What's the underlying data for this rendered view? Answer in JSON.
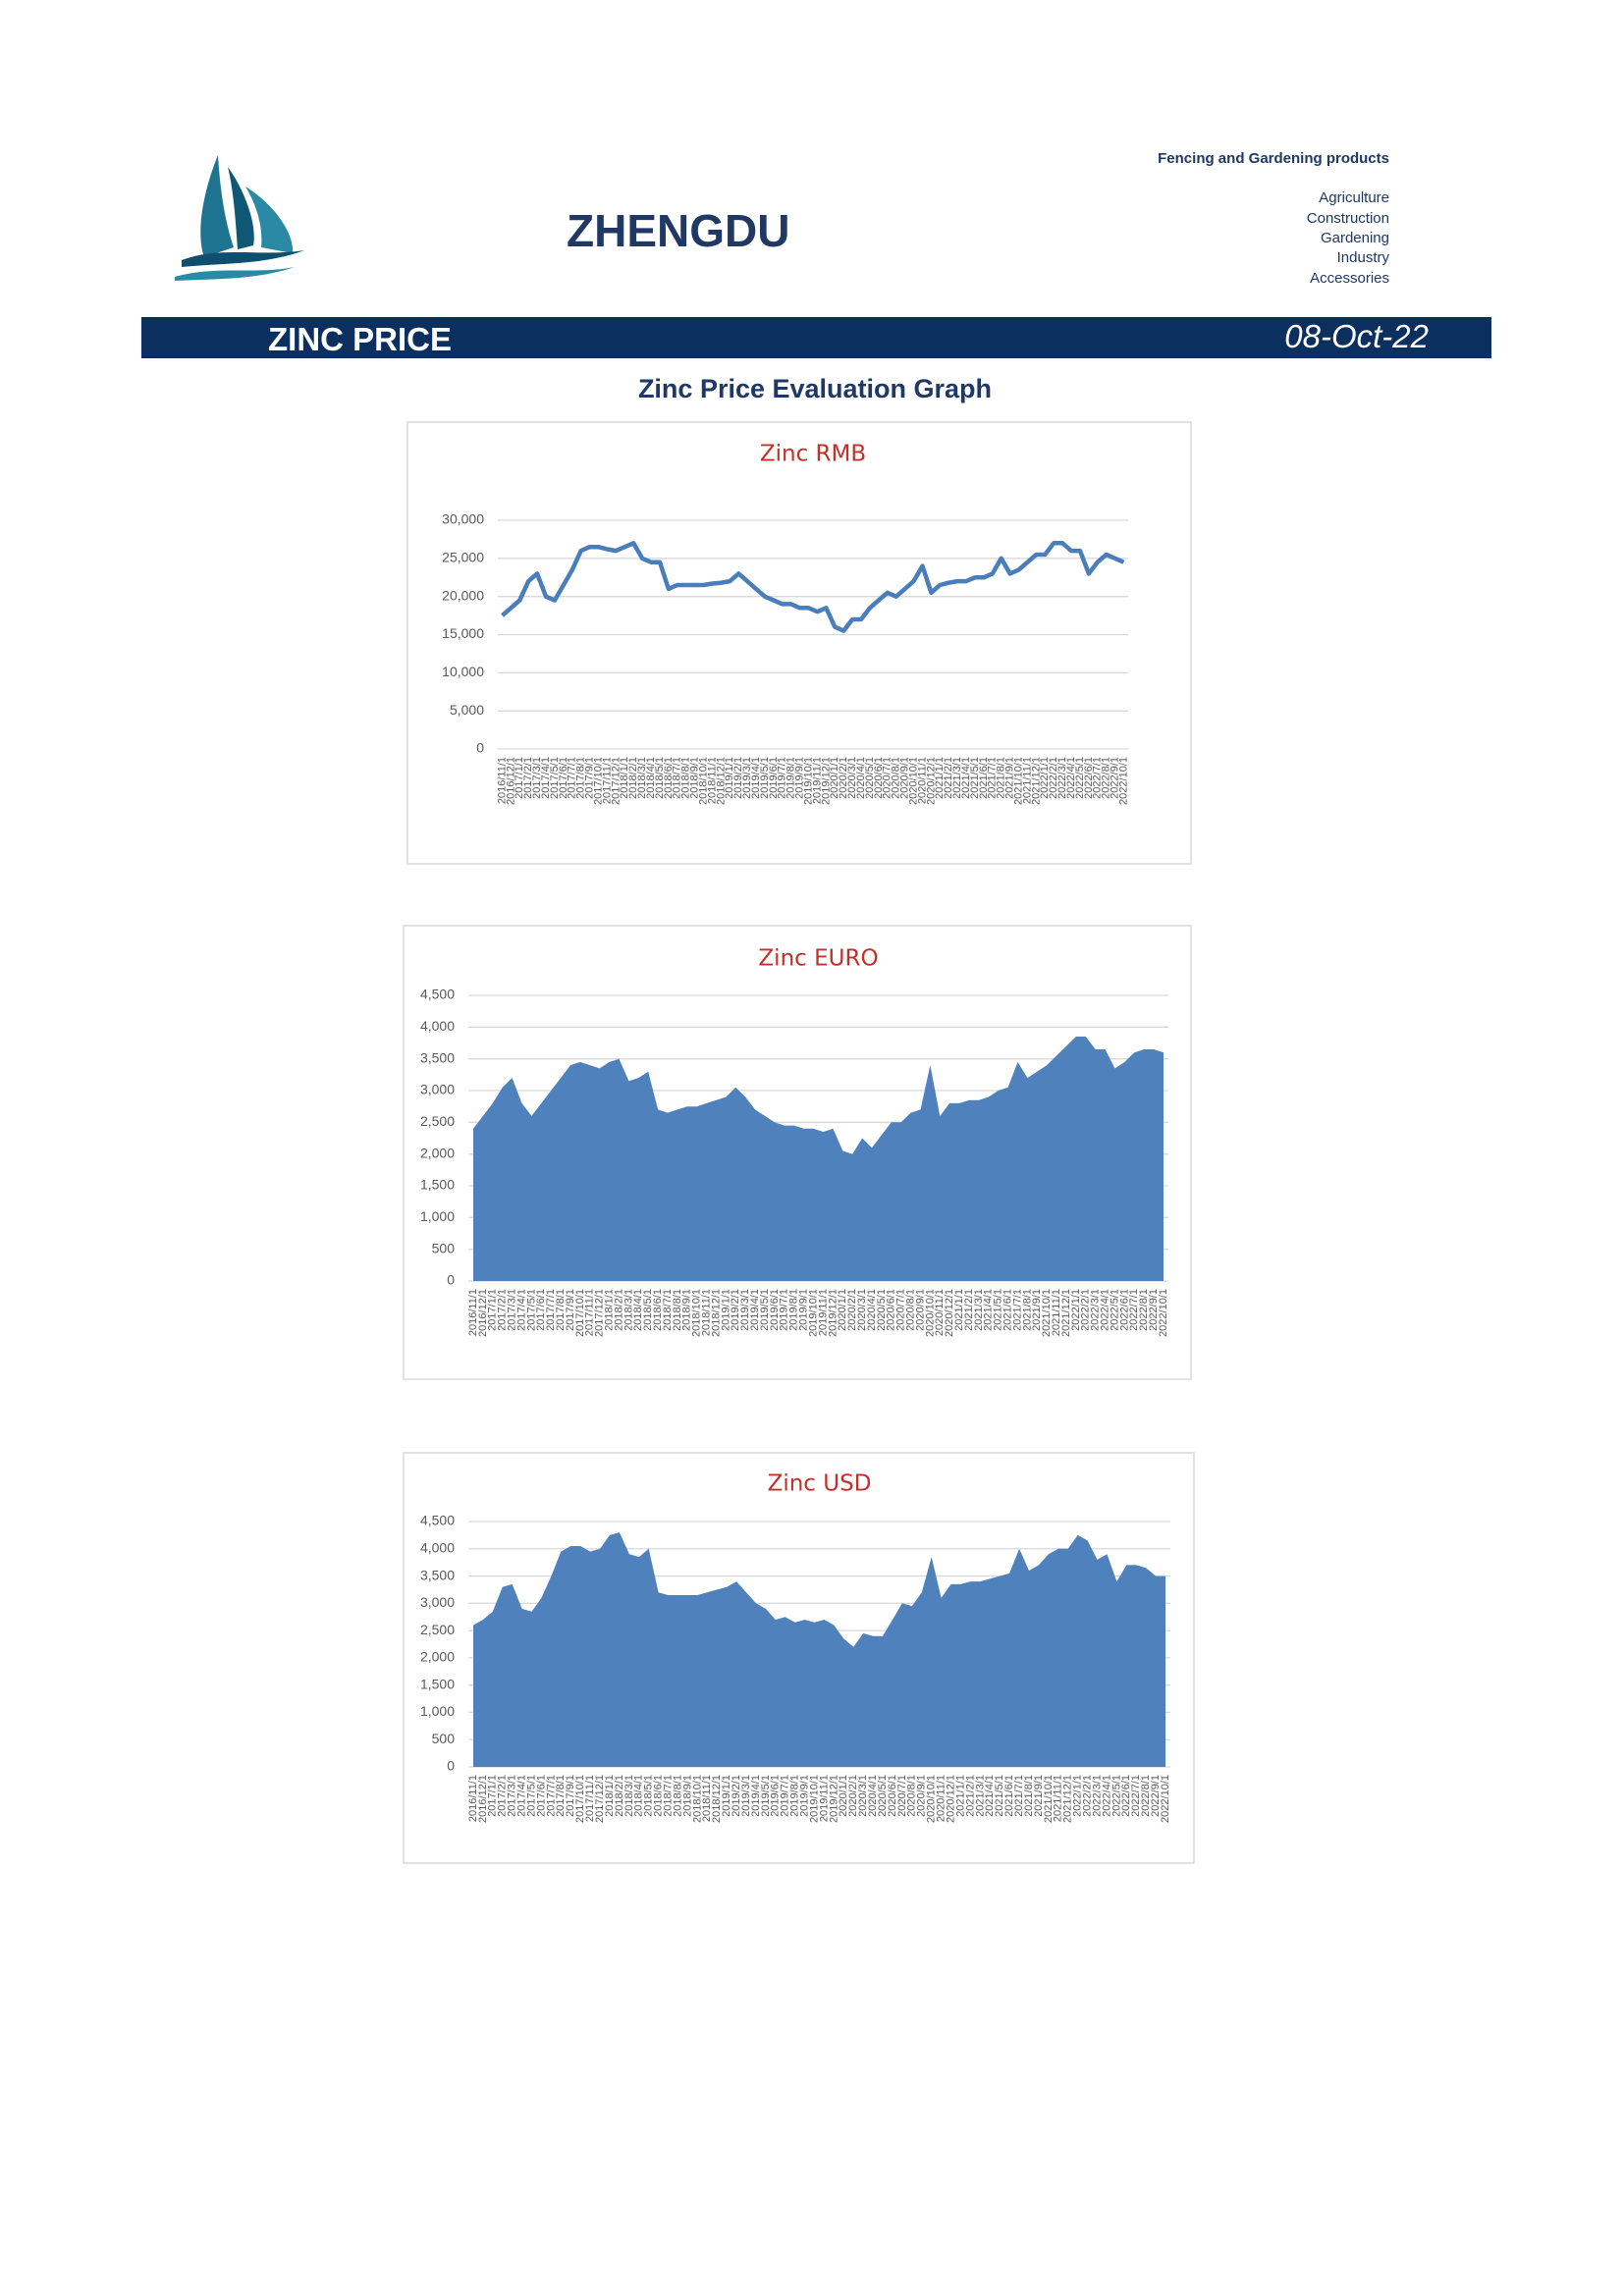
{
  "header": {
    "brand": "ZHENGDU",
    "tagline": "Fencing and Gardening products",
    "sectors": [
      "Agriculture",
      "Construction",
      "Gardening",
      "Industry",
      "Accessories"
    ]
  },
  "banner": {
    "title": "ZINC PRICE",
    "date": "08-Oct-22"
  },
  "heading": "Zinc Price Evaluation Graph",
  "chart_data": [
    {
      "type": "line",
      "title": "Zinc RMB",
      "color": "#4a7ebb",
      "categories": [
        "2016/11/1",
        "2016/12/1",
        "2017/1/1",
        "2017/2/1",
        "2017/3/1",
        "2017/4/1",
        "2017/5/1",
        "2017/6/1",
        "2017/7/1",
        "2017/8/1",
        "2017/9/1",
        "2017/10/1",
        "2017/11/1",
        "2017/12/1",
        "2018/1/1",
        "2018/2/1",
        "2018/3/1",
        "2018/4/1",
        "2018/5/1",
        "2018/6/1",
        "2018/7/1",
        "2018/8/1",
        "2018/9/1",
        "2018/10/1",
        "2018/11/1",
        "2018/12/1",
        "2019/1/1",
        "2019/2/1",
        "2019/3/1",
        "2019/4/1",
        "2019/5/1",
        "2019/6/1",
        "2019/7/1",
        "2019/8/1",
        "2019/9/1",
        "2019/10/1",
        "2019/11/1",
        "2019/12/1",
        "2020/1/1",
        "2020/2/1",
        "2020/3/1",
        "2020/4/1",
        "2020/5/1",
        "2020/6/1",
        "2020/7/1",
        "2020/8/1",
        "2020/9/1",
        "2020/10/1",
        "2020/11/1",
        "2020/12/1",
        "2021/1/1",
        "2021/2/1",
        "2021/3/1",
        "2021/4/1",
        "2021/5/1",
        "2021/6/1",
        "2021/7/1",
        "2021/8/1",
        "2021/9/1",
        "2021/10/1",
        "2021/11/1",
        "2021/12/1",
        "2022/1/1",
        "2022/2/1",
        "2022/3/1",
        "2022/4/1",
        "2022/5/1",
        "2022/6/1",
        "2022/7/1",
        "2022/8/1",
        "2022/9/1",
        "2022/10/1"
      ],
      "values": [
        17500,
        18500,
        19500,
        22000,
        23000,
        20000,
        19500,
        21500,
        23500,
        26000,
        26500,
        26500,
        26200,
        26000,
        26500,
        27000,
        25000,
        24500,
        24500,
        21000,
        21500,
        21500,
        21500,
        21500,
        21700,
        21800,
        22000,
        23000,
        22000,
        21000,
        20000,
        19500,
        19000,
        19000,
        18500,
        18500,
        18000,
        18500,
        16000,
        15500,
        17000,
        17000,
        18500,
        19500,
        20500,
        20000,
        21000,
        22000,
        24000,
        20500,
        21500,
        21800,
        22000,
        22000,
        22500,
        22500,
        23000,
        25000,
        23000,
        23500,
        24500,
        25500,
        25500,
        27000,
        27000,
        26000,
        26000,
        23000,
        24500,
        25500,
        25000,
        24500
      ],
      "ylim": [
        0,
        30000
      ],
      "yticks": [
        0,
        {
          "value": 5000,
          "label": "5,000"
        },
        {
          "value": 10000,
          "label": "10,000"
        },
        {
          "value": 15000,
          "label": "15,000"
        },
        {
          "value": 20000,
          "label": "20,000"
        },
        {
          "value": 25000,
          "label": "25,000"
        },
        {
          "value": 30000,
          "label": "30,000"
        }
      ],
      "grid": true
    },
    {
      "type": "area",
      "title": "Zinc EURO",
      "color": "#4f81bd",
      "categories": [
        "2016/11/1",
        "2016/12/1",
        "2017/1/1",
        "2017/2/1",
        "2017/3/1",
        "2017/4/1",
        "2017/5/1",
        "2017/6/1",
        "2017/7/1",
        "2017/8/1",
        "2017/9/1",
        "2017/10/1",
        "2017/11/1",
        "2017/12/1",
        "2018/1/1",
        "2018/2/1",
        "2018/3/1",
        "2018/4/1",
        "2018/5/1",
        "2018/6/1",
        "2018/7/1",
        "2018/8/1",
        "2018/9/1",
        "2018/10/1",
        "2018/11/1",
        "2018/12/1",
        "2019/1/1",
        "2019/2/1",
        "2019/3/1",
        "2019/4/1",
        "2019/5/1",
        "2019/6/1",
        "2019/7/1",
        "2019/8/1",
        "2019/9/1",
        "2019/10/1",
        "2019/11/1",
        "2019/12/1",
        "2020/1/1",
        "2020/2/1",
        "2020/3/1",
        "2020/4/1",
        "2020/5/1",
        "2020/6/1",
        "2020/7/1",
        "2020/8/1",
        "2020/9/1",
        "2020/10/1",
        "2020/11/1",
        "2020/12/1",
        "2021/1/1",
        "2021/2/1",
        "2021/3/1",
        "2021/4/1",
        "2021/5/1",
        "2021/6/1",
        "2021/7/1",
        "2021/8/1",
        "2021/9/1",
        "2021/10/1",
        "2021/11/1",
        "2021/12/1",
        "2022/1/1",
        "2022/2/1",
        "2022/3/1",
        "2022/4/1",
        "2022/5/1",
        "2022/6/1",
        "2022/7/1",
        "2022/8/1",
        "2022/9/1",
        "2022/10/1"
      ],
      "values": [
        2400,
        2600,
        2800,
        3050,
        3200,
        2800,
        2600,
        2800,
        3000,
        3200,
        3400,
        3450,
        3400,
        3350,
        3450,
        3500,
        3150,
        3200,
        3300,
        2700,
        2650,
        2700,
        2750,
        2750,
        2800,
        2850,
        2900,
        3050,
        2900,
        2700,
        2600,
        2500,
        2450,
        2450,
        2400,
        2400,
        2350,
        2400,
        2050,
        2000,
        2250,
        2100,
        2300,
        2500,
        2500,
        2650,
        2700,
        3400,
        2600,
        2800,
        2800,
        2850,
        2850,
        2900,
        3000,
        3050,
        3450,
        3200,
        3300,
        3400,
        3550,
        3700,
        3850,
        3850,
        3650,
        3650,
        3350,
        3450,
        3600,
        3650,
        3650,
        3600
      ],
      "ylim": [
        0,
        4500
      ],
      "yticks": [
        0,
        500,
        {
          "value": 1000,
          "label": "1,000"
        },
        {
          "value": 1500,
          "label": "1,500"
        },
        {
          "value": 2000,
          "label": "2,000"
        },
        {
          "value": 2500,
          "label": "2,500"
        },
        {
          "value": 3000,
          "label": "3,000"
        },
        {
          "value": 3500,
          "label": "3,500"
        },
        {
          "value": 4000,
          "label": "4,000"
        },
        {
          "value": 4500,
          "label": "4,500"
        }
      ],
      "grid": true
    },
    {
      "type": "area",
      "title": "Zinc USD",
      "color": "#4f81bd",
      "categories": [
        "2016/11/1",
        "2016/12/1",
        "2017/1/1",
        "2017/2/1",
        "2017/3/1",
        "2017/4/1",
        "2017/5/1",
        "2017/6/1",
        "2017/7/1",
        "2017/8/1",
        "2017/9/1",
        "2017/10/1",
        "2017/11/1",
        "2017/12/1",
        "2018/1/1",
        "2018/2/1",
        "2018/3/1",
        "2018/4/1",
        "2018/5/1",
        "2018/6/1",
        "2018/7/1",
        "2018/8/1",
        "2018/9/1",
        "2018/10/1",
        "2018/11/1",
        "2018/12/1",
        "2019/1/1",
        "2019/2/1",
        "2019/3/1",
        "2019/4/1",
        "2019/5/1",
        "2019/6/1",
        "2019/7/1",
        "2019/8/1",
        "2019/9/1",
        "2019/10/1",
        "2019/11/1",
        "2019/12/1",
        "2020/1/1",
        "2020/2/1",
        "2020/3/1",
        "2020/4/1",
        "2020/5/1",
        "2020/6/1",
        "2020/7/1",
        "2020/8/1",
        "2020/9/1",
        "2020/10/1",
        "2020/11/1",
        "2020/12/1",
        "2021/1/1",
        "2021/2/1",
        "2021/3/1",
        "2021/4/1",
        "2021/5/1",
        "2021/6/1",
        "2021/7/1",
        "2021/8/1",
        "2021/9/1",
        "2021/10/1",
        "2021/11/1",
        "2021/12/1",
        "2022/1/1",
        "2022/2/1",
        "2022/3/1",
        "2022/4/1",
        "2022/5/1",
        "2022/6/1",
        "2022/7/1",
        "2022/8/1",
        "2022/9/1",
        "2022/10/1"
      ],
      "values": [
        2600,
        2700,
        2850,
        3300,
        3350,
        2900,
        2850,
        3100,
        3500,
        3950,
        4050,
        4050,
        3950,
        4000,
        4250,
        4300,
        3900,
        3850,
        4000,
        3200,
        3150,
        3150,
        3150,
        3150,
        3200,
        3250,
        3300,
        3400,
        3200,
        3000,
        2900,
        2700,
        2750,
        2650,
        2700,
        2650,
        2700,
        2600,
        2350,
        2200,
        2450,
        2400,
        2400,
        2700,
        3000,
        2950,
        3200,
        3850,
        3100,
        3350,
        3350,
        3400,
        3400,
        3450,
        3500,
        3550,
        4000,
        3600,
        3700,
        3900,
        4000,
        4000,
        4250,
        4150,
        3800,
        3900,
        3400,
        3700,
        3700,
        3650,
        3500,
        3500
      ],
      "ylim": [
        0,
        4500
      ],
      "yticks": [
        0,
        500,
        {
          "value": 1000,
          "label": "1,000"
        },
        {
          "value": 1500,
          "label": "1,500"
        },
        {
          "value": 2000,
          "label": "2,000"
        },
        {
          "value": 2500,
          "label": "2,500"
        },
        {
          "value": 3000,
          "label": "3,000"
        },
        {
          "value": 3500,
          "label": "3,500"
        },
        {
          "value": 4000,
          "label": "4,000"
        },
        {
          "value": 4500,
          "label": "4,500"
        }
      ],
      "grid": true
    }
  ]
}
